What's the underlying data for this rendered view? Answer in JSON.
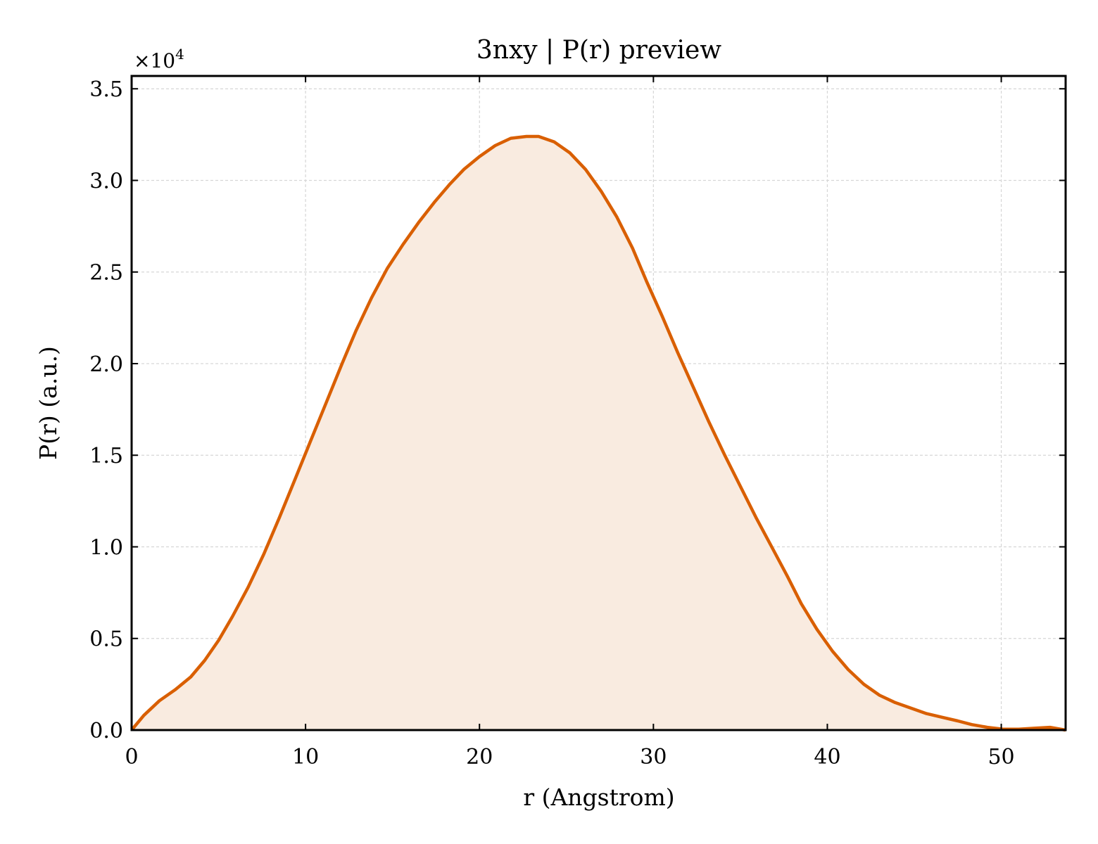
{
  "chart_data": {
    "type": "area",
    "title": "3nxy | P(r) preview",
    "xlabel": "r (Angstrom)",
    "ylabel": "P(r) (a.u.)",
    "y_multiplier": "×10",
    "y_multiplier_exponent": "4",
    "xlim": [
      0,
      53.7
    ],
    "ylim": [
      0,
      3.57
    ],
    "y_scale_factor": 10000,
    "xticks": [
      0,
      10,
      20,
      30,
      40,
      50
    ],
    "xtick_labels": [
      "0",
      "10",
      "20",
      "30",
      "40",
      "50"
    ],
    "yticks": [
      0,
      0.5,
      1.0,
      1.5,
      2.0,
      2.5,
      3.0,
      3.5
    ],
    "ytick_labels": [
      "0.0",
      "0.5",
      "1.0",
      "1.5",
      "2.0",
      "2.5",
      "3.0",
      "3.5"
    ],
    "grid": true,
    "legend": false,
    "line_color": "#d95f02",
    "fill_color": "#f9ebe0",
    "series": [
      {
        "x": [
          0,
          0.7,
          1.6,
          2.5,
          3.4,
          4.2,
          5.0,
          5.8,
          6.7,
          7.6,
          8.5,
          9.4,
          10.3,
          11.2,
          12.1,
          12.9,
          13.8,
          14.7,
          15.6,
          16.5,
          17.4,
          18.3,
          19.1,
          20.0,
          20.9,
          21.8,
          22.7,
          23.4,
          24.3,
          25.2,
          26.1,
          27.0,
          27.9,
          28.8,
          29.6,
          30.5,
          31.4,
          32.3,
          33.2,
          34.1,
          35.0,
          35.9,
          36.8,
          37.7,
          38.5,
          39.4,
          40.3,
          41.2,
          42.1,
          43.0,
          43.9,
          44.8,
          45.7,
          46.6,
          47.5,
          48.3,
          49.2,
          50.1,
          51.0,
          51.9,
          52.8,
          53.7
        ],
        "y": [
          0,
          0.08,
          0.16,
          0.22,
          0.29,
          0.38,
          0.49,
          0.62,
          0.78,
          0.96,
          1.16,
          1.37,
          1.58,
          1.79,
          2.0,
          2.18,
          2.36,
          2.52,
          2.65,
          2.77,
          2.88,
          2.98,
          3.06,
          3.13,
          3.19,
          3.23,
          3.24,
          3.24,
          3.21,
          3.15,
          3.06,
          2.94,
          2.8,
          2.63,
          2.45,
          2.26,
          2.06,
          1.87,
          1.68,
          1.5,
          1.33,
          1.16,
          1.0,
          0.84,
          0.69,
          0.55,
          0.43,
          0.33,
          0.25,
          0.19,
          0.15,
          0.12,
          0.09,
          0.07,
          0.05,
          0.03,
          0.015,
          0.005,
          0.005,
          0.01,
          0.015,
          0
        ]
      }
    ]
  }
}
